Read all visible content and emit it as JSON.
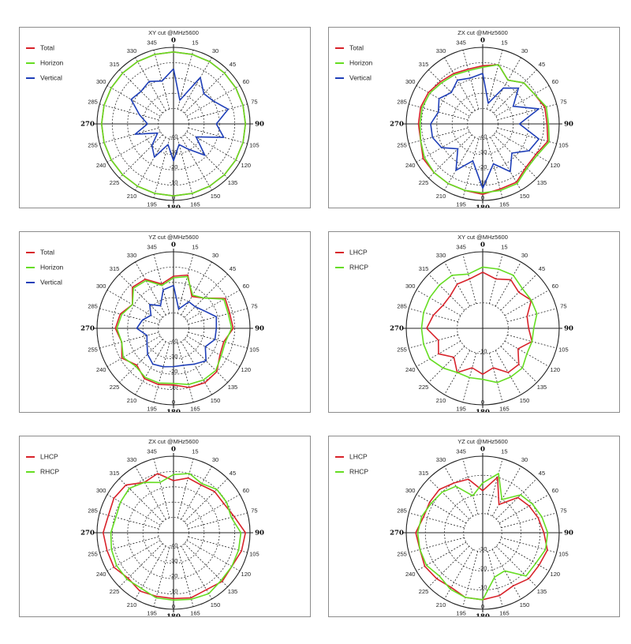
{
  "chart_data": [
    {
      "type": "polar",
      "title": "XY cut @MHz5600",
      "angle_labels": [
        "0",
        "15",
        "30",
        "45",
        "60",
        "75",
        "90",
        "105",
        "120",
        "135",
        "150",
        "165",
        "180",
        "195",
        "210",
        "225",
        "240",
        "255",
        "270",
        "285",
        "300",
        "315",
        "330",
        "345"
      ],
      "radial_ticks": [
        "-40",
        "-30",
        "-20",
        "-10",
        "0"
      ],
      "rlim": [
        -50,
        0
      ],
      "legend_position": "top-left",
      "series": [
        {
          "name": "Total",
          "color": "#d8222a",
          "values": [
            -3,
            -3,
            -3,
            -3,
            -3,
            -3,
            -3,
            -3,
            -3,
            -3,
            -3,
            -3,
            -3,
            -3,
            -3,
            -3,
            -3,
            -3,
            -3,
            -3,
            -3,
            -3,
            -3,
            -3
          ]
        },
        {
          "name": "Horizon",
          "color": "#66dd22",
          "values": [
            -3,
            -3,
            -3,
            -3,
            -3,
            -3,
            -3,
            -3,
            -3,
            -3,
            -3,
            -3,
            -3,
            -3,
            -3,
            -3,
            -3,
            -3,
            -3,
            -3,
            -3,
            -3,
            -3,
            -3
          ]
        },
        {
          "name": "Vertical",
          "color": "#1f3fb8",
          "values": [
            -14,
            -34,
            -15,
            -22,
            -20,
            -13,
            -22,
            -16,
            -33,
            -21,
            -31,
            -36,
            -26,
            -36,
            -25,
            -30,
            -38,
            -24,
            -33,
            -27,
            -18,
            -20,
            -18,
            -21
          ]
        }
      ]
    },
    {
      "type": "polar",
      "title": "ZX cut @MHz5600",
      "angle_labels": [
        "0",
        "15",
        "30",
        "45",
        "60",
        "75",
        "90",
        "105",
        "120",
        "135",
        "150",
        "165",
        "180",
        "195",
        "210",
        "225",
        "240",
        "255",
        "270",
        "285",
        "300",
        "315",
        "330",
        "345"
      ],
      "radial_ticks": [
        "-40",
        "-30",
        "-20",
        "-10",
        "0"
      ],
      "rlim": [
        -50,
        0
      ],
      "legend_position": "top-left",
      "series": [
        {
          "name": "Total",
          "color": "#d8222a",
          "values": [
            -12,
            -10,
            -17,
            -12,
            -11,
            -8,
            -8,
            -6,
            -10,
            -10,
            -6,
            -6,
            -4,
            -5,
            -5,
            -5,
            -5,
            -8,
            -8,
            -8,
            -9,
            -11,
            -12,
            -13
          ]
        },
        {
          "name": "Horizon",
          "color": "#66dd22",
          "values": [
            -13,
            -10,
            -17,
            -12,
            -11,
            -7,
            -7,
            -5,
            -9,
            -9,
            -5,
            -5,
            -5,
            -5,
            -5,
            -5,
            -6,
            -8,
            -9,
            -9,
            -10,
            -12,
            -13,
            -14
          ]
        },
        {
          "name": "Vertical",
          "color": "#1f3fb8",
          "values": [
            -17,
            -36,
            -23,
            -17,
            -27,
            -12,
            -26,
            -12,
            -15,
            -23,
            -14,
            -23,
            -8,
            -25,
            -15,
            -27,
            -19,
            -16,
            -16,
            -20,
            -17,
            -21,
            -17,
            -19
          ]
        }
      ]
    },
    {
      "type": "polar",
      "title": "YZ cut @MHz5600",
      "angle_labels": [
        "0",
        "15",
        "30",
        "45",
        "60",
        "75",
        "90",
        "105",
        "120",
        "135",
        "150",
        "165",
        "180",
        "195",
        "210",
        "225",
        "240",
        "255",
        "270",
        "285",
        "300",
        "315",
        "330",
        "345"
      ],
      "radial_ticks": [
        "-40",
        "-30",
        "-20",
        "-10",
        "0"
      ],
      "rlim": [
        -50,
        0
      ],
      "legend_position": "top-left",
      "series": [
        {
          "name": "Total",
          "color": "#d8222a",
          "values": [
            -16,
            -14,
            -26,
            -22,
            -11,
            -12,
            -11,
            -16,
            -15,
            -10,
            -9,
            -10,
            -13,
            -12,
            -12,
            -16,
            -11,
            -15,
            -12,
            -14,
            -19,
            -12,
            -13,
            -20
          ]
        },
        {
          "name": "Horizon",
          "color": "#66dd22",
          "values": [
            -17,
            -15,
            -25,
            -22,
            -12,
            -13,
            -12,
            -15,
            -14,
            -11,
            -11,
            -12,
            -14,
            -13,
            -13,
            -15,
            -12,
            -15,
            -13,
            -15,
            -19,
            -13,
            -14,
            -21
          ]
        },
        {
          "name": "Vertical",
          "color": "#1f3fb8",
          "values": [
            -22,
            -37,
            -30,
            -30,
            -27,
            -21,
            -22,
            -22,
            -26,
            -20,
            -23,
            -25,
            -25,
            -24,
            -23,
            -26,
            -30,
            -32,
            -26,
            -29,
            -33,
            -28,
            -33,
            -24
          ]
        }
      ]
    },
    {
      "type": "polar",
      "title": "XY cut @MHz5600",
      "angle_labels": [
        "0",
        "15",
        "30",
        "45",
        "60",
        "75",
        "90",
        "105",
        "120",
        "135",
        "150",
        "165",
        "180",
        "195",
        "210",
        "225",
        "240",
        "255",
        "270",
        "285",
        "300",
        "315",
        "330",
        "345"
      ],
      "radial_ticks": [
        "-10",
        "0"
      ],
      "rlim": [
        -15,
        0
      ],
      "legend_position": "top-left",
      "series": [
        {
          "name": "LHCP",
          "color": "#d8222a",
          "values": [
            -4,
            -5,
            -4,
            -5,
            -4,
            -6,
            -6,
            -5,
            -7,
            -5,
            -5,
            -7,
            -6,
            -7,
            -5,
            -7,
            -5,
            -6,
            -4,
            -5,
            -6,
            -6,
            -5,
            -5
          ]
        },
        {
          "name": "RHCP",
          "color": "#66dd22",
          "values": [
            -3,
            -3,
            -3,
            -4,
            -4,
            -4,
            -5,
            -5,
            -5,
            -4,
            -4,
            -4,
            -5,
            -5,
            -5,
            -4,
            -3,
            -3,
            -3,
            -3,
            -3,
            -3,
            -3,
            -4
          ]
        }
      ]
    },
    {
      "type": "polar",
      "title": "ZX cut @MHz5600",
      "angle_labels": [
        "0",
        "15",
        "30",
        "45",
        "60",
        "75",
        "90",
        "105",
        "120",
        "135",
        "150",
        "165",
        "180",
        "195",
        "210",
        "225",
        "240",
        "255",
        "270",
        "285",
        "300",
        "315",
        "330",
        "345"
      ],
      "radial_ticks": [
        "-40",
        "-30",
        "-20",
        "-10",
        "0"
      ],
      "rlim": [
        -50,
        0
      ],
      "legend_position": "top-left",
      "series": [
        {
          "name": "LHCP",
          "color": "#d8222a",
          "values": [
            -16,
            -13,
            -14,
            -12,
            -12,
            -9,
            -3,
            -4,
            -6,
            -5,
            -7,
            -6,
            -7,
            -7,
            -6,
            -8,
            -5,
            -5,
            -4,
            -6,
            -5,
            -6,
            -12,
            -10
          ]
        },
        {
          "name": "RHCP",
          "color": "#66dd22",
          "values": [
            -12,
            -10,
            -13,
            -10,
            -10,
            -11,
            -6,
            -6,
            -6,
            -6,
            -4,
            -5,
            -6,
            -6,
            -8,
            -7,
            -7,
            -8,
            -9,
            -11,
            -10,
            -9,
            -12,
            -16
          ]
        }
      ]
    },
    {
      "type": "polar",
      "title": "YZ cut @MHz5600",
      "angle_labels": [
        "0",
        "15",
        "30",
        "45",
        "60",
        "75",
        "90",
        "105",
        "120",
        "135",
        "150",
        "165",
        "180",
        "195",
        "210",
        "225",
        "240",
        "255",
        "270",
        "285",
        "300",
        "315",
        "330",
        "345"
      ],
      "radial_ticks": [
        "-30",
        "-20",
        "-10",
        "0"
      ],
      "rlim": [
        -40,
        0
      ],
      "legend_position": "top-left",
      "series": [
        {
          "name": "LHCP",
          "color": "#d8222a",
          "values": [
            -18,
            -10,
            -23,
            -14,
            -12,
            -10,
            -8,
            -5,
            -6,
            -6,
            -8,
            -6,
            -5,
            -5,
            -7,
            -6,
            -5,
            -6,
            -5,
            -8,
            -8,
            -8,
            -10,
            -11
          ]
        },
        {
          "name": "RHCP",
          "color": "#66dd22",
          "values": [
            -14,
            -8,
            -20,
            -12,
            -10,
            -8,
            -6,
            -6,
            -8,
            -8,
            -17,
            -16,
            -5,
            -5,
            -6,
            -8,
            -6,
            -6,
            -6,
            -7,
            -9,
            -10,
            -12,
            -20
          ]
        }
      ]
    }
  ]
}
